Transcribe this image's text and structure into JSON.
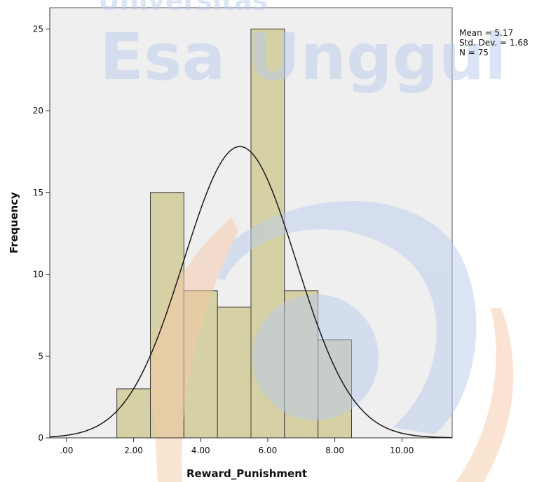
{
  "watermark": {
    "small_text": "Universitas",
    "large_text": "Esa Unggul"
  },
  "stats": {
    "mean_label": "Mean = 5.17",
    "sd_label": "Std. Dev. = 1.68",
    "n_label": "N = 75"
  },
  "chart_data": {
    "type": "bar",
    "subtype": "histogram",
    "xlabel": "Reward_Punishment",
    "ylabel": "Frequency",
    "xlim": [
      -0.5,
      11.5
    ],
    "ylim": [
      0,
      26.3
    ],
    "x_ticks": [
      0,
      2,
      4,
      6,
      8,
      10
    ],
    "x_tick_labels": [
      ".00",
      "2.00",
      "4.00",
      "6.00",
      "8.00",
      "10.00"
    ],
    "y_ticks": [
      0,
      5,
      10,
      15,
      20,
      25
    ],
    "y_tick_labels": [
      "0",
      "5",
      "10",
      "15",
      "20",
      "25"
    ],
    "bins": [
      {
        "start": 1.5,
        "end": 2.5,
        "count": 3
      },
      {
        "start": 2.5,
        "end": 3.5,
        "count": 15
      },
      {
        "start": 3.5,
        "end": 4.5,
        "count": 9
      },
      {
        "start": 4.5,
        "end": 5.5,
        "count": 8
      },
      {
        "start": 5.5,
        "end": 6.5,
        "count": 25
      },
      {
        "start": 6.5,
        "end": 7.5,
        "count": 9
      },
      {
        "start": 7.5,
        "end": 8.5,
        "count": 6
      }
    ],
    "normal_curve": {
      "mean": 5.17,
      "sd": 1.68,
      "n": 75,
      "bin_width": 1
    },
    "colors": {
      "plot_background": "#efefef",
      "bar_fill": "#d6d1a4",
      "bar_stroke": "#3a3a3a",
      "curve": "#1a1a1a",
      "watermark_blue": "#b9cdee",
      "watermark_orange": "#f6c9a6"
    }
  }
}
